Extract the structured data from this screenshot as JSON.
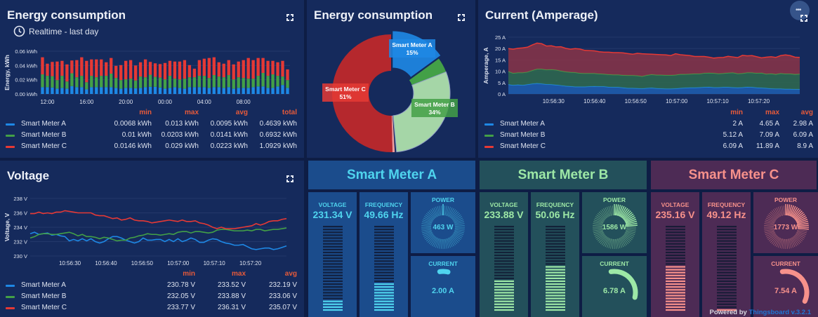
{
  "energy_bar": {
    "title": "Energy consumption",
    "subtitle": "Realtime - last day",
    "chart_data": {
      "type": "bar",
      "stacked": true,
      "ylabel": "Energy, kWh",
      "ylim": [
        0,
        0.06
      ],
      "yticks": [
        "0.00 kWh",
        "0.02 kWh",
        "0.04 kWh",
        "0.06 kWh"
      ],
      "xticks": [
        "12:00",
        "16:00",
        "20:00",
        "00:00",
        "04:00",
        "08:00"
      ],
      "series": [
        {
          "name": "Smart Meter A",
          "color": "#1e88e5",
          "values": [
            0.0095,
            0.0095,
            0.009,
            0.0075,
            0.0085,
            0.0075,
            0.011,
            0.0095,
            0.0095,
            0.0065,
            0.0095,
            0.0095,
            0.0095,
            0.0095,
            0.0095,
            0.0085,
            0.0075,
            0.0085,
            0.0085,
            0.008,
            0.0085,
            0.0095,
            0.01,
            0.01,
            0.009,
            0.0075,
            0.0085,
            0.0095,
            0.0085,
            0.0075,
            0.0095,
            0.0095,
            0.0095,
            0.0095,
            0.0085,
            0.0095,
            0.0095,
            0.0085,
            0.0095,
            0.0075,
            0.0085,
            0.0085,
            0.0085,
            0.0095,
            0.0105,
            0.0105,
            0.0085,
            0.0085,
            0.0105,
            0.0125,
            0.0085
          ]
        },
        {
          "name": "Smart Meter B",
          "color": "#43a047",
          "values": [
            0.018,
            0.016,
            0.016,
            0.012,
            0.017,
            0.01,
            0.018,
            0.014,
            0.016,
            0.01,
            0.016,
            0.014,
            0.016,
            0.016,
            0.019,
            0.014,
            0.012,
            0.012,
            0.013,
            0.011,
            0.016,
            0.014,
            0.017,
            0.014,
            0.014,
            0.013,
            0.017,
            0.012,
            0.012,
            0.014,
            0.014,
            0.014,
            0.016,
            0.016,
            0.014,
            0.017,
            0.015,
            0.015,
            0.017,
            0.013,
            0.015,
            0.014,
            0.013,
            0.012,
            0.015,
            0.019,
            0.017,
            0.019,
            0.015,
            0.012,
            0.011
          ]
        },
        {
          "name": "Smart Meter C",
          "color": "#e53935",
          "values": [
            0.024,
            0.017,
            0.02,
            0.026,
            0.021,
            0.024,
            0.018,
            0.024,
            0.026,
            0.03,
            0.023,
            0.025,
            0.023,
            0.019,
            0.022,
            0.017,
            0.021,
            0.026,
            0.026,
            0.021,
            0.02,
            0.025,
            0.018,
            0.019,
            0.019,
            0.023,
            0.021,
            0.024,
            0.025,
            0.026,
            0.017,
            0.012,
            0.022,
            0.024,
            0.028,
            0.025,
            0.02,
            0.019,
            0.021,
            0.021,
            0.022,
            0.025,
            0.029,
            0.026,
            0.025,
            0.021,
            0.021,
            0.019,
            0.019,
            0.022,
            0.015
          ]
        }
      ]
    },
    "legend": {
      "headers": [
        "min",
        "max",
        "avg",
        "total"
      ],
      "rows": [
        {
          "name": "Smart Meter A",
          "color": "#1e88e5",
          "values": [
            "0.0068 kWh",
            "0.013 kWh",
            "0.0095 kWh",
            "0.4639 kWh"
          ]
        },
        {
          "name": "Smart Meter B",
          "color": "#43a047",
          "values": [
            "0.01 kWh",
            "0.0203 kWh",
            "0.0141 kWh",
            "0.6932 kWh"
          ]
        },
        {
          "name": "Smart Meter C",
          "color": "#e53935",
          "values": [
            "0.0146 kWh",
            "0.029 kWh",
            "0.0223 kWh",
            "1.0929 kWh"
          ]
        }
      ]
    }
  },
  "energy_pie": {
    "title": "Energy consumption",
    "chart_data": {
      "type": "pie",
      "donut": true,
      "slices": [
        {
          "name": "Smart Meter A",
          "label": "Smart Meter A",
          "percent_label": "15%",
          "value": 15,
          "color": "#1e88e5"
        },
        {
          "name": "Smart Meter B",
          "label": "Smart Meter B",
          "percent_label": "34%",
          "value": 34,
          "color": "#a5d6a7"
        },
        {
          "name": "Smart Meter C",
          "label": "Smart Meter C",
          "percent_label": "51%",
          "value": 51,
          "color": "#e53935"
        }
      ]
    }
  },
  "current": {
    "title": "Current (Amperage)",
    "chart_data": {
      "type": "area",
      "stacked": true,
      "ylabel": "Amperage, A",
      "ylim": [
        0,
        25
      ],
      "yticks": [
        "0 A",
        "5 A",
        "10 A",
        "15 A",
        "20 A",
        "25 A"
      ],
      "xticks": [
        "10:56:30",
        "10:56:40",
        "10:56:50",
        "10:57:00",
        "10:57:10",
        "10:57:20"
      ],
      "x_range_seconds": [
        -11,
        60
      ],
      "x_tick_seconds": [
        0,
        10,
        20,
        30,
        40,
        50
      ],
      "series": [
        {
          "name": "Smart Meter A",
          "color": "#1e88e5",
          "values": [
            4.2,
            3.9,
            4.1,
            3.9,
            4.2,
            4.5,
            4.7,
            4.5,
            4.3,
            4.2,
            4.0,
            3.8,
            3.5,
            3.4,
            3.2,
            3.2,
            3.2,
            3.3,
            3.4,
            3.3,
            3.3,
            3.1,
            3.0,
            3.0,
            2.8,
            2.6,
            2.6,
            2.5,
            2.4,
            2.6,
            2.7,
            2.5,
            2.4,
            2.3,
            2.3,
            2.4,
            2.6,
            2.7,
            2.8,
            2.8,
            2.9,
            3.0,
            3.1,
            2.9,
            2.9,
            3.0,
            3.0,
            2.9,
            2.8,
            2.9,
            3.1,
            3.0,
            2.8,
            2.7,
            2.6,
            2.4,
            2.3,
            2.3,
            2.2,
            2.2,
            2.1,
            2.1
          ]
        },
        {
          "name": "Smart Meter B",
          "color": "#43a047",
          "values": [
            5.7,
            5.3,
            5.3,
            5.5,
            5.5,
            5.9,
            6.3,
            6.5,
            6.4,
            6.6,
            6.6,
            6.4,
            6.3,
            6.2,
            6.3,
            6.0,
            5.9,
            5.8,
            5.7,
            5.6,
            5.5,
            5.5,
            5.5,
            5.5,
            5.5,
            5.6,
            5.6,
            5.6,
            5.4,
            5.7,
            5.9,
            5.9,
            6.0,
            6.0,
            6.0,
            6.0,
            6.1,
            6.0,
            6.0,
            6.1,
            6.0,
            6.2,
            6.2,
            6.3,
            6.1,
            6.1,
            6.3,
            6.5,
            6.2,
            6.2,
            6.3,
            6.4,
            6.4,
            6.6,
            6.2,
            6.6,
            6.4,
            6.8,
            6.7,
            6.7,
            6.6,
            6.7
          ]
        },
        {
          "name": "Smart Meter C",
          "color": "#e53935",
          "values": [
            10.1,
            10.5,
            10.7,
            10.9,
            10.9,
            11.2,
            11.4,
            11.1,
            10.4,
            10.4,
            10.1,
            10.6,
            10.3,
            10.1,
            10.5,
            10.6,
            10.1,
            10.0,
            9.9,
            9.7,
            9.6,
            9.8,
            9.7,
            9.7,
            9.8,
            9.6,
            9.3,
            9.8,
            9.9,
            9.3,
            8.9,
            9.0,
            8.9,
            8.9,
            8.6,
            9.3,
            8.6,
            8.4,
            8.1,
            7.6,
            7.6,
            7.3,
            6.9,
            6.6,
            7.0,
            7.0,
            7.3,
            6.9,
            7.0,
            7.9,
            7.4,
            7.5,
            7.2,
            6.6,
            7.4,
            7.4,
            7.4,
            7.8,
            8.3,
            8.0,
            7.5,
            7.3
          ]
        }
      ]
    },
    "legend": {
      "headers": [
        "min",
        "max",
        "avg"
      ],
      "rows": [
        {
          "name": "Smart Meter A",
          "color": "#1e88e5",
          "values": [
            "2 A",
            "4.65 A",
            "2.98 A"
          ]
        },
        {
          "name": "Smart Meter B",
          "color": "#43a047",
          "values": [
            "5.12 A",
            "7.09 A",
            "6.09 A"
          ]
        },
        {
          "name": "Smart Meter C",
          "color": "#e53935",
          "values": [
            "6.09 A",
            "11.89 A",
            "8.9 A"
          ]
        }
      ]
    }
  },
  "voltage": {
    "title": "Voltage",
    "chart_data": {
      "type": "line",
      "ylabel": "Voltage, V",
      "ylim": [
        230,
        238
      ],
      "yticks": [
        "230 V",
        "232 V",
        "234 V",
        "236 V",
        "238 V"
      ],
      "xticks": [
        "10:56:30",
        "10:56:40",
        "10:56:50",
        "10:57:00",
        "10:57:10",
        "10:57:20"
      ],
      "x_range_seconds": [
        -11,
        60
      ],
      "x_tick_seconds": [
        0,
        10,
        20,
        30,
        40,
        50
      ],
      "series": [
        {
          "name": "Smart Meter A",
          "color": "#1e88e5",
          "values": [
            233.1,
            233.3,
            233.0,
            233.1,
            233.2,
            232.9,
            233.0,
            232.8,
            232.7,
            232.1,
            232.3,
            232.1,
            232.4,
            232.1,
            232.4,
            232.0,
            231.8,
            232.0,
            232.4,
            232.7,
            232.7,
            232.5,
            232.2,
            232.0,
            231.8,
            232.0,
            232.5,
            232.2,
            232.2,
            232.3,
            232.3,
            232.0,
            232.3,
            232.0,
            232.4,
            232.0,
            232.2,
            232.5,
            232.3,
            231.9,
            231.9,
            232.2,
            232.4,
            232.3,
            232.0,
            231.8,
            231.7,
            231.5,
            231.5,
            231.6,
            231.3,
            231.0,
            230.9,
            231.0,
            231.1,
            231.1,
            230.9,
            231.0,
            231.2,
            231.4
          ]
        },
        {
          "name": "Smart Meter B",
          "color": "#43a047",
          "values": [
            232.5,
            232.7,
            233.0,
            233.1,
            233.1,
            233.0,
            233.0,
            233.1,
            233.2,
            233.3,
            233.1,
            232.8,
            233.0,
            232.7,
            232.7,
            232.6,
            232.4,
            232.6,
            232.5,
            232.3,
            232.1,
            232.2,
            232.2,
            232.5,
            232.6,
            232.8,
            232.9,
            233.1,
            233.0,
            233.0,
            232.9,
            233.0,
            233.1,
            233.0,
            233.3,
            233.4,
            233.4,
            233.2,
            233.4,
            233.4,
            233.3,
            233.2,
            233.3,
            233.6,
            233.7,
            233.7,
            233.6,
            233.5,
            233.5,
            233.5,
            233.6,
            233.5,
            233.7,
            233.7,
            233.5,
            233.6,
            233.7,
            233.7,
            233.8,
            233.9
          ]
        },
        {
          "name": "Smart Meter C",
          "color": "#e53935",
          "values": [
            235.9,
            235.9,
            236.1,
            235.9,
            236.0,
            235.9,
            236.1,
            236.1,
            236.3,
            236.2,
            236.1,
            236.0,
            236.0,
            236.0,
            236.0,
            235.7,
            235.6,
            235.6,
            235.4,
            235.2,
            235.3,
            235.0,
            235.1,
            235.3,
            235.0,
            234.9,
            234.9,
            234.8,
            234.6,
            234.7,
            234.8,
            234.9,
            235.0,
            234.9,
            234.8,
            235.0,
            234.8,
            234.8,
            234.9,
            234.6,
            234.5,
            234.3,
            234.0,
            233.8,
            234.0,
            233.8,
            233.8,
            233.8,
            233.9,
            234.0,
            234.1,
            234.2,
            234.5,
            234.3,
            234.5,
            234.8,
            234.9,
            234.9,
            235.1,
            235.2
          ]
        }
      ]
    },
    "legend": {
      "headers": [
        "min",
        "max",
        "avg"
      ],
      "rows": [
        {
          "name": "Smart Meter A",
          "color": "#1e88e5",
          "values": [
            "230.78 V",
            "233.52 V",
            "232.19 V"
          ]
        },
        {
          "name": "Smart Meter B",
          "color": "#43a047",
          "values": [
            "232.05 V",
            "233.88 V",
            "233.06 V"
          ]
        },
        {
          "name": "Smart Meter C",
          "color": "#e53935",
          "values": [
            "233.77 V",
            "236.31 V",
            "235.07 V"
          ]
        }
      ]
    }
  },
  "meters": [
    {
      "name": "Smart Meter A",
      "accent": "#4fd4ee",
      "bg": "#1b4c8c",
      "panel": "#1c3f78",
      "voltage_label": "VOLTAGE",
      "voltage": "231.34 V",
      "voltage_level": 0.14,
      "frequency_label": "FREQUENCY",
      "frequency": "49.66 Hz",
      "frequency_level": 0.33,
      "power_label": "POWER",
      "power": "463 W",
      "power_level": 0.01,
      "current_label": "CURRENT",
      "current": "2.00 A",
      "current_level": 0.1
    },
    {
      "name": "Smart Meter B",
      "accent": "#9de8a6",
      "bg": "#23505b",
      "panel": "#244452",
      "voltage_label": "VOLTAGE",
      "voltage": "233.88 V",
      "voltage_level": 0.38,
      "frequency_label": "FREQUENCY",
      "frequency": "50.06 Hz",
      "frequency_level": 0.53,
      "power_label": "POWER",
      "power": "1586 W",
      "power_level": 0.25,
      "current_label": "CURRENT",
      "current": "6.78 A",
      "current_level": 0.5
    },
    {
      "name": "Smart Meter C",
      "accent": "#f7918b",
      "bg": "#4d2b55",
      "panel": "#432a52",
      "voltage_label": "VOLTAGE",
      "voltage": "235.16 V",
      "voltage_level": 0.52,
      "frequency_label": "FREQUENCY",
      "frequency": "49.12 Hz",
      "frequency_level": 0.03,
      "power_label": "POWER",
      "power": "1773 W",
      "power_level": 0.27,
      "current_label": "CURRENT",
      "current": "7.54 A",
      "current_level": 0.55
    }
  ],
  "footer": {
    "powered_by": "Powered by",
    "brand": "Thingsboard v.3.2.1"
  },
  "icons": {
    "clock": "clock-icon",
    "fullscreen": "fullscreen-icon",
    "more": "more-dots-icon"
  }
}
